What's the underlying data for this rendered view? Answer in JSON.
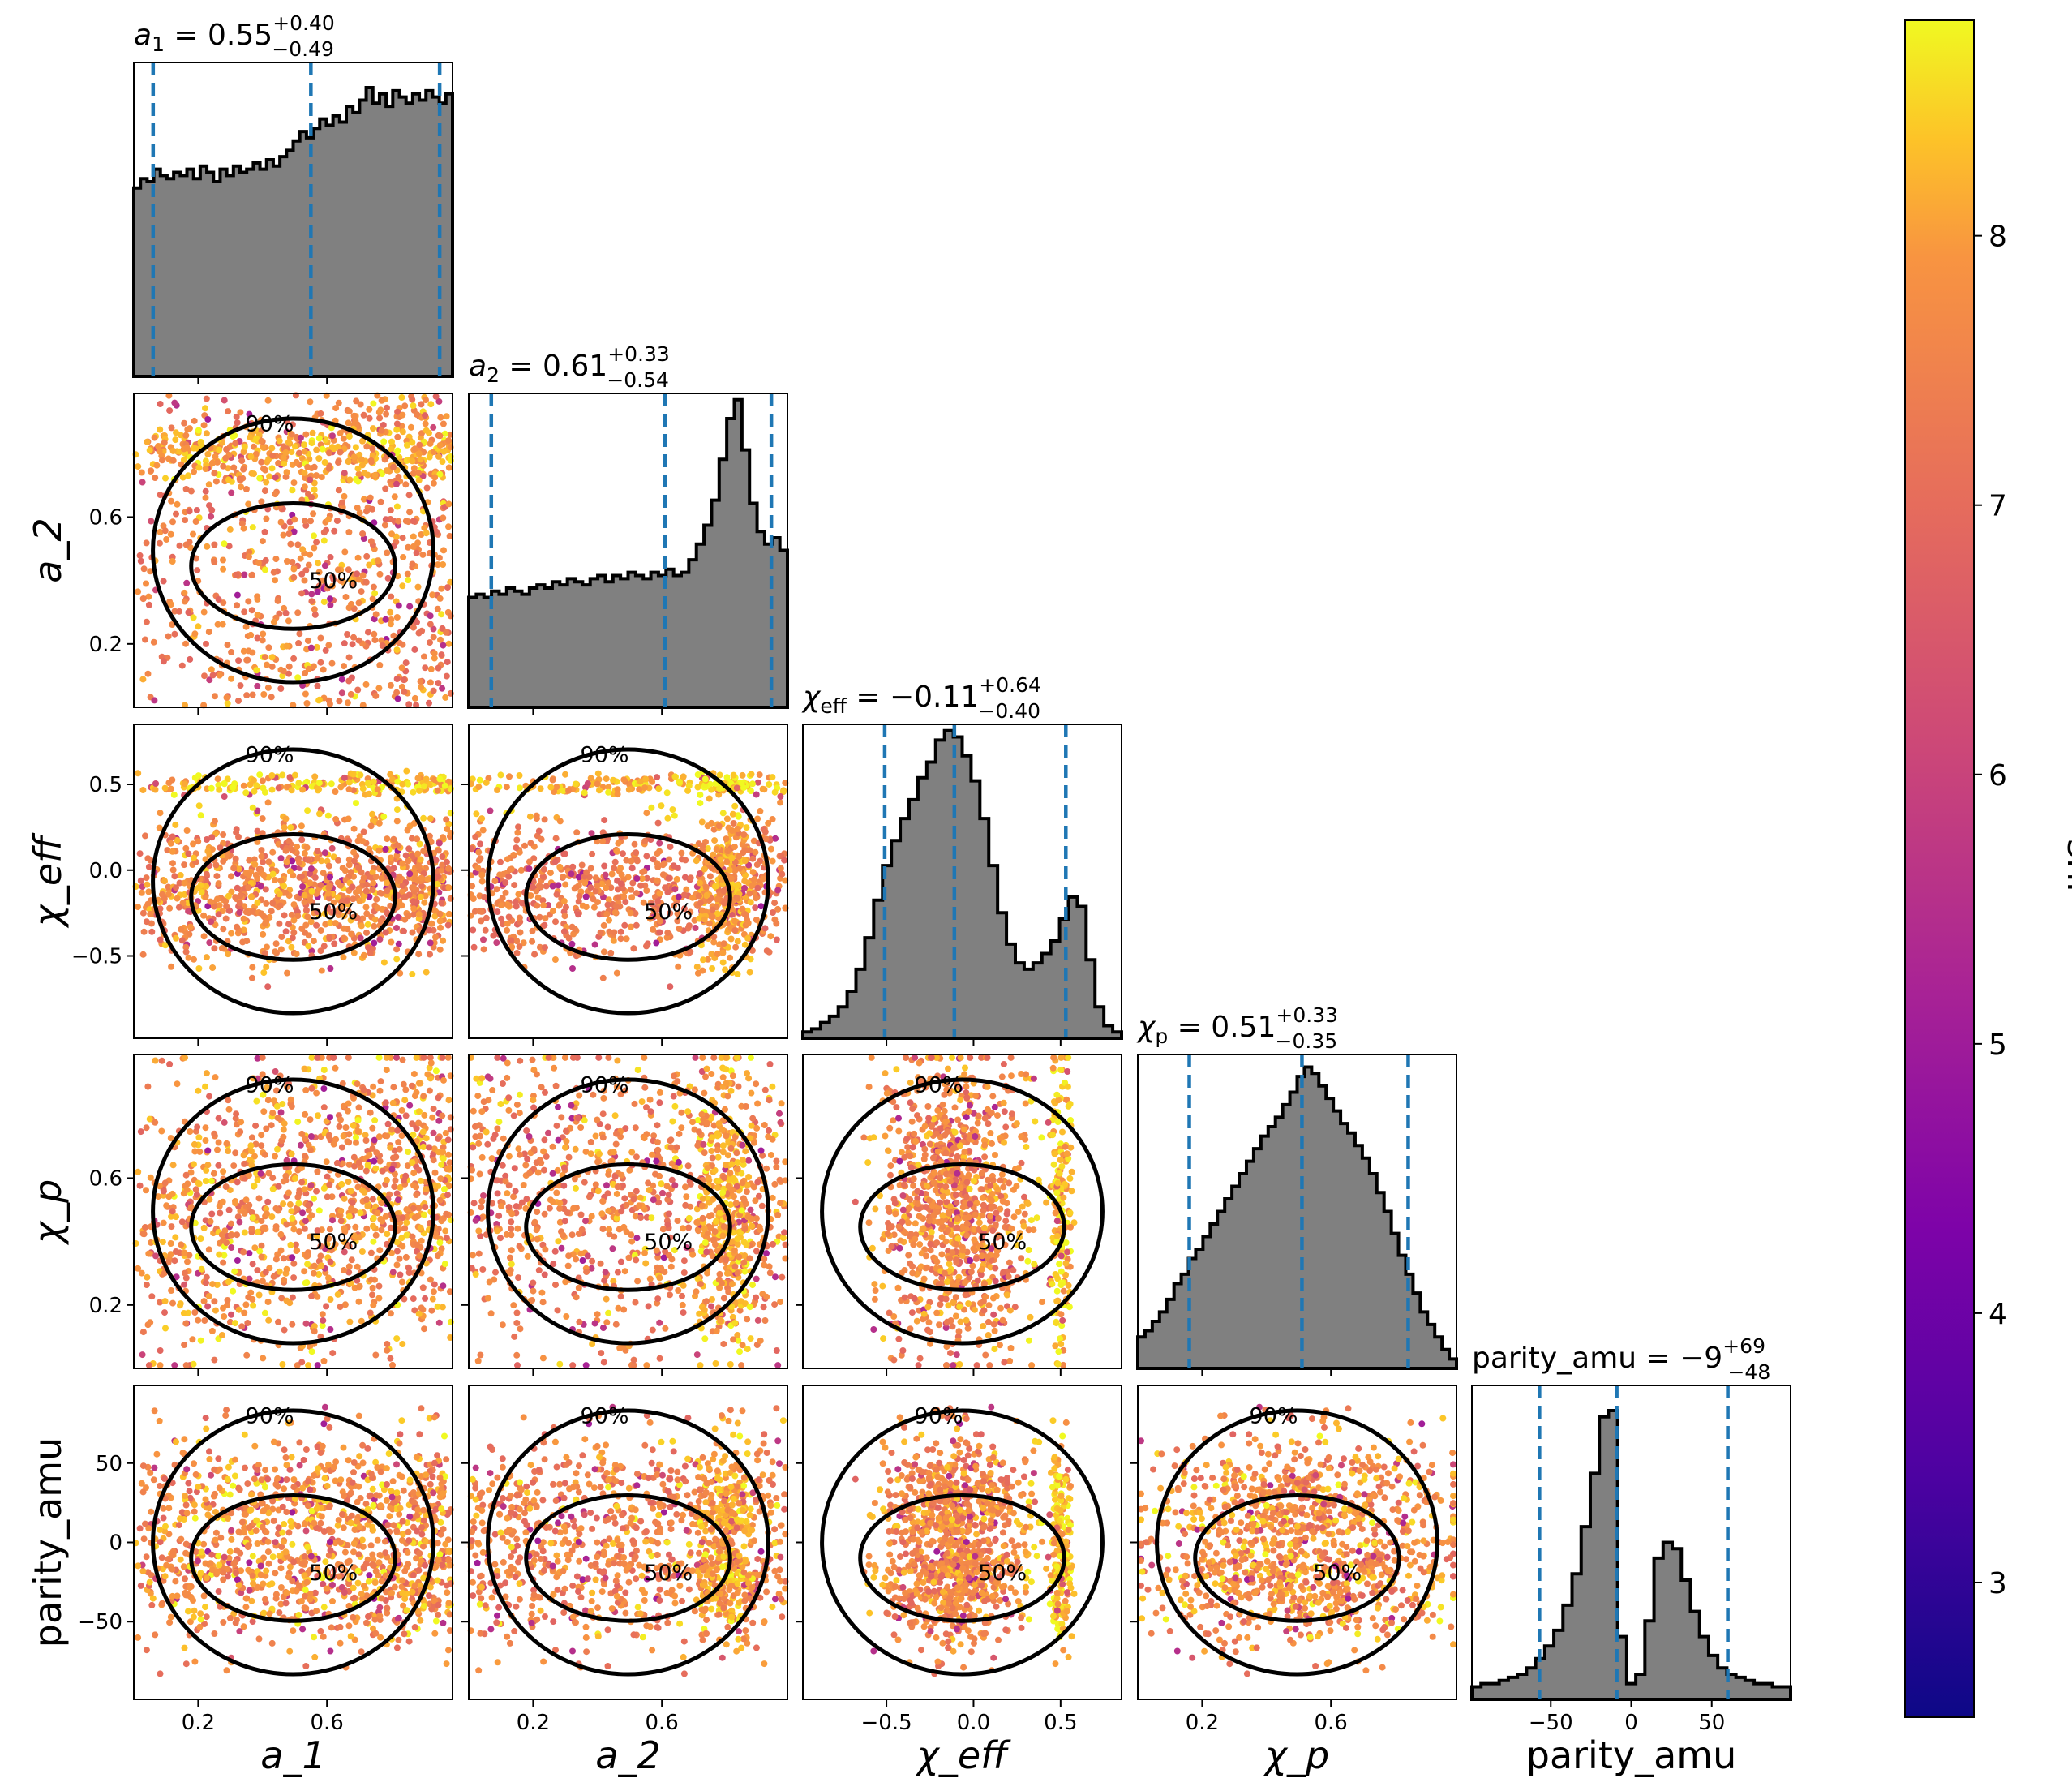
{
  "chart_data": {
    "type": "corner",
    "parameters": [
      {
        "key": "a1",
        "name": "a_1",
        "unit": ""
      },
      {
        "key": "a2",
        "name": "a_2",
        "unit": ""
      },
      {
        "key": "chi_eff",
        "name": "χ_eff",
        "unit": ""
      },
      {
        "key": "chi_p",
        "name": "χ_p",
        "unit": ""
      },
      {
        "key": "parity_amu",
        "name": "parity_amu",
        "unit": ""
      }
    ],
    "ranges": {
      "a1": [
        0.0,
        0.99
      ],
      "a2": [
        0.0,
        0.99
      ],
      "chi_eff": [
        -0.98,
        0.85
      ],
      "chi_p": [
        0.0,
        0.99
      ],
      "parity_amu": [
        -99,
        99
      ]
    },
    "ticks": {
      "a1": [
        0.2,
        0.6
      ],
      "a2": [
        0.2,
        0.6
      ],
      "chi_eff": [
        -0.5,
        0.0,
        0.5
      ],
      "chi_p": [
        0.2,
        0.6
      ],
      "parity_amu": [
        -50,
        0,
        50
      ]
    },
    "tick_labels": {
      "a1": [
        "0.2",
        "0.6"
      ],
      "a2": [
        "0.2",
        "0.6"
      ],
      "chi_eff": [
        "−0.5",
        "0.0",
        "0.5"
      ],
      "chi_p": [
        "0.2",
        "0.6"
      ],
      "parity_amu": [
        "−50",
        "0",
        "50"
      ]
    },
    "summaries": [
      {
        "param": "a1",
        "median": 0.55,
        "plus": 0.4,
        "minus": 0.49,
        "prefix": "a",
        "sub": "1",
        "value": " = 0.55",
        "sup": "+0.40",
        "inf": "−0.49"
      },
      {
        "param": "a2",
        "median": 0.61,
        "plus": 0.33,
        "minus": 0.54,
        "prefix": "a",
        "sub": "2",
        "value": " = 0.61",
        "sup": "+0.33",
        "inf": "−0.54"
      },
      {
        "param": "chi_eff",
        "median": -0.11,
        "plus": 0.64,
        "minus": 0.4,
        "prefix": "χ",
        "sub": "eff",
        "value": " = −0.11",
        "sup": "+0.64",
        "inf": "−0.40"
      },
      {
        "param": "chi_p",
        "median": 0.51,
        "plus": 0.33,
        "minus": 0.35,
        "prefix": "χ",
        "sub": "p",
        "value": " = 0.51",
        "sup": "+0.33",
        "inf": "−0.35"
      },
      {
        "param": "parity_amu",
        "median": -9,
        "plus": 69,
        "minus": 48,
        "prefix": "parity_amu",
        "sub": "",
        "value": " = −9",
        "sup": "+69",
        "inf": "−48"
      }
    ],
    "histograms": {
      "a1": [
        0.6,
        0.63,
        0.62,
        0.66,
        0.64,
        0.63,
        0.65,
        0.64,
        0.66,
        0.63,
        0.67,
        0.65,
        0.62,
        0.66,
        0.64,
        0.67,
        0.65,
        0.66,
        0.68,
        0.66,
        0.69,
        0.67,
        0.7,
        0.72,
        0.75,
        0.78,
        0.76,
        0.79,
        0.82,
        0.8,
        0.83,
        0.81,
        0.86,
        0.84,
        0.88,
        0.92,
        0.87,
        0.9,
        0.86,
        0.91,
        0.89,
        0.87,
        0.9,
        0.88,
        0.91,
        0.89,
        0.87,
        0.9
      ],
      "a2": [
        0.35,
        0.36,
        0.35,
        0.37,
        0.36,
        0.38,
        0.37,
        0.36,
        0.38,
        0.39,
        0.38,
        0.4,
        0.39,
        0.41,
        0.4,
        0.39,
        0.41,
        0.42,
        0.4,
        0.42,
        0.41,
        0.43,
        0.42,
        0.41,
        0.43,
        0.42,
        0.44,
        0.42,
        0.43,
        0.47,
        0.52,
        0.58,
        0.66,
        0.79,
        0.92,
        0.98,
        0.82,
        0.65,
        0.56,
        0.52,
        0.54,
        0.5
      ],
      "chi_eff": [
        0.02,
        0.03,
        0.05,
        0.07,
        0.1,
        0.15,
        0.22,
        0.32,
        0.44,
        0.55,
        0.63,
        0.7,
        0.76,
        0.83,
        0.88,
        0.95,
        0.98,
        0.96,
        0.9,
        0.82,
        0.7,
        0.55,
        0.4,
        0.3,
        0.24,
        0.22,
        0.24,
        0.27,
        0.31,
        0.38,
        0.45,
        0.42,
        0.25,
        0.1,
        0.04,
        0.02
      ],
      "chi_p": [
        0.1,
        0.12,
        0.15,
        0.18,
        0.22,
        0.27,
        0.3,
        0.35,
        0.38,
        0.42,
        0.46,
        0.5,
        0.54,
        0.58,
        0.62,
        0.66,
        0.7,
        0.74,
        0.77,
        0.8,
        0.84,
        0.88,
        0.93,
        0.96,
        0.94,
        0.9,
        0.86,
        0.82,
        0.78,
        0.75,
        0.71,
        0.67,
        0.62,
        0.56,
        0.5,
        0.43,
        0.36,
        0.3,
        0.24,
        0.18,
        0.14,
        0.1,
        0.06,
        0.03
      ],
      "parity_amu": [
        0.04,
        0.05,
        0.05,
        0.06,
        0.07,
        0.08,
        0.1,
        0.13,
        0.17,
        0.22,
        0.3,
        0.4,
        0.55,
        0.72,
        0.9,
        0.92,
        0.2,
        0.05,
        0.08,
        0.25,
        0.45,
        0.5,
        0.48,
        0.38,
        0.28,
        0.2,
        0.14,
        0.1,
        0.08,
        0.07,
        0.06,
        0.05,
        0.05,
        0.04,
        0.04
      ]
    },
    "contour_labels": [
      "50%",
      "90%"
    ],
    "colorbar": {
      "label": "snr",
      "min": 2.5,
      "max": 8.8,
      "ticks": [
        3,
        4,
        5,
        6,
        7,
        8
      ],
      "colormap": "plasma"
    },
    "hist_fill_color": "#808080",
    "quantile_line_color": "#1f77b4"
  }
}
